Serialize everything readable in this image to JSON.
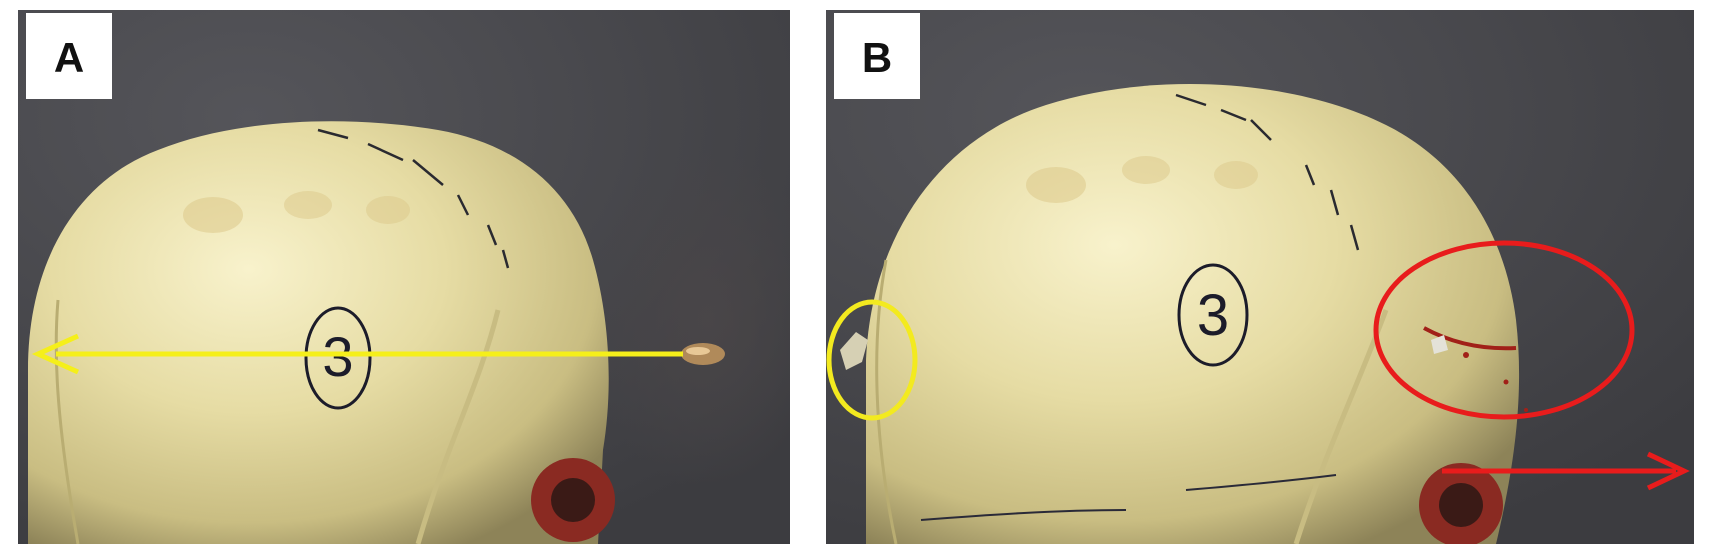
{
  "panels": [
    {
      "label": "A",
      "skull_marking": "3"
    },
    {
      "label": "B",
      "skull_marking": "3"
    }
  ],
  "colors": {
    "background": "#47474b",
    "skull": "#e8dfad",
    "trajectory_arrow": "#f5ef1a",
    "entry_highlight": "#e81c1c",
    "exit_highlight": "#f3ea1f",
    "ink": "#1c1c2a"
  },
  "icons": {
    "bullet": "bullet-icon",
    "trajectory": "trajectory-arrow",
    "exit_direction": "exit-direction-arrow"
  }
}
